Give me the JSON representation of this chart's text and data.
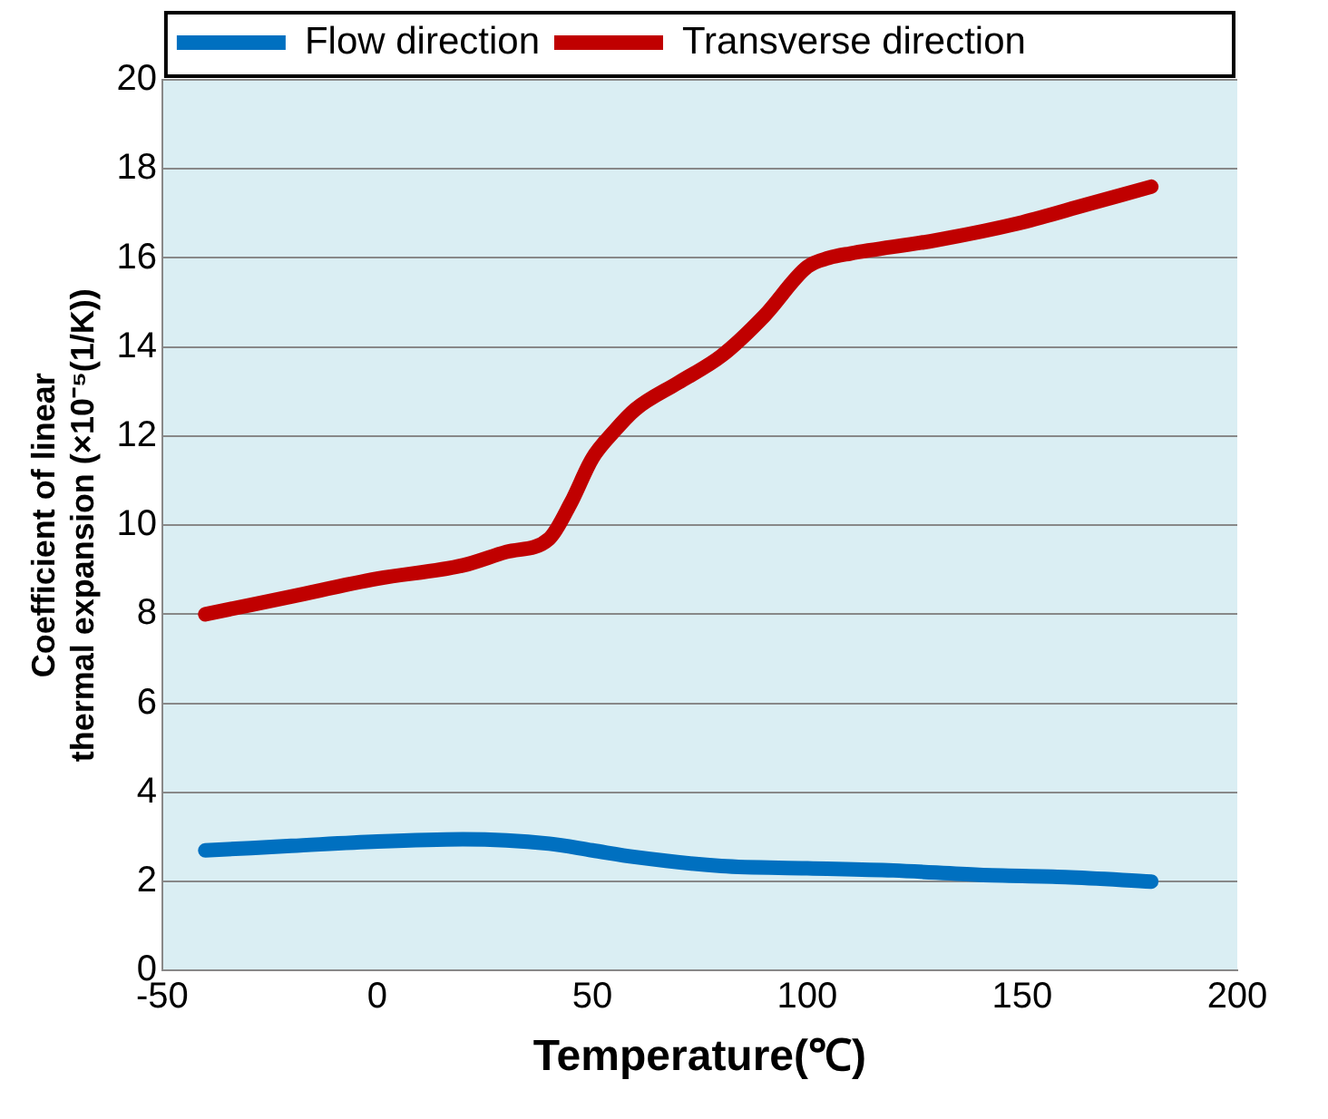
{
  "chart_data": {
    "type": "line",
    "xlabel": "Temperature(℃)",
    "ylabel": "Coefficient of linear thermal expansion (×10⁻⁵(1/K))",
    "xlim": [
      -50,
      200
    ],
    "xticks": [
      -50,
      0,
      50,
      100,
      150,
      200
    ],
    "ylim": [
      0,
      20
    ],
    "yticks": [
      0,
      2,
      4,
      6,
      8,
      10,
      12,
      14,
      16,
      18,
      20
    ],
    "grid": "y",
    "legend": "top left",
    "marker": "none",
    "line_style": "solid",
    "series": [
      {
        "name": "Flow direction",
        "color": "#0070c0",
        "x": [
          -40,
          -20,
          0,
          20,
          40,
          50,
          60,
          80,
          100,
          120,
          140,
          160,
          180
        ],
        "values": [
          2.7,
          2.8,
          2.9,
          2.95,
          2.85,
          2.7,
          2.55,
          2.35,
          2.3,
          2.25,
          2.15,
          2.1,
          2.0
        ]
      },
      {
        "name": "Transverse direction",
        "color": "#c00000",
        "x": [
          -40,
          -20,
          0,
          20,
          30,
          40,
          45,
          50,
          55,
          60,
          70,
          80,
          90,
          100,
          105,
          110,
          130,
          150,
          165,
          180
        ],
        "values": [
          8.0,
          8.4,
          8.8,
          9.1,
          9.4,
          9.7,
          10.5,
          11.5,
          12.1,
          12.6,
          13.2,
          13.8,
          14.7,
          15.8,
          16.0,
          16.1,
          16.4,
          16.8,
          17.2,
          17.6
        ]
      }
    ]
  }
}
